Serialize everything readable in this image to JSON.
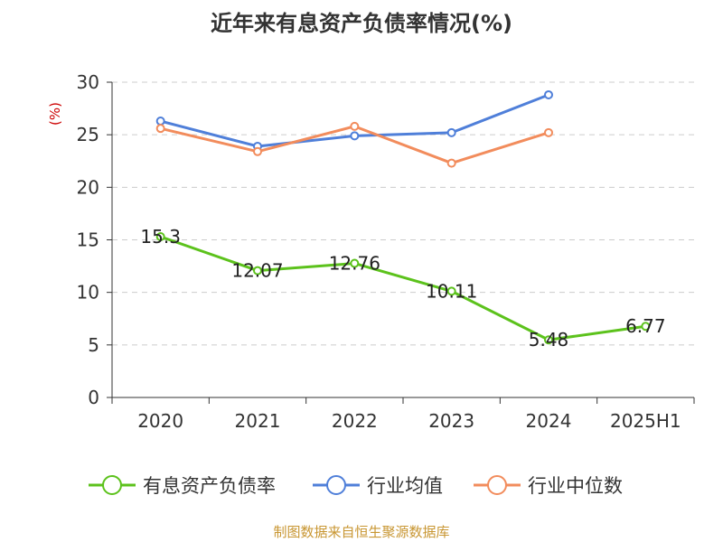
{
  "chart_data": {
    "type": "line",
    "title": "近年来有息资产负债率情况(%)",
    "ylabel": "(%)",
    "categories": [
      "2020",
      "2021",
      "2022",
      "2023",
      "2024",
      "2025H1"
    ],
    "ylim": [
      0,
      30
    ],
    "yticks": [
      0,
      5,
      10,
      15,
      20,
      25,
      30
    ],
    "grid": true,
    "legend_position": "bottom",
    "series": [
      {
        "name": "有息资产负债率",
        "color": "#5cc21c",
        "values": [
          15.3,
          12.07,
          12.76,
          10.11,
          5.48,
          6.77
        ],
        "labels": [
          "15.3",
          "12.07",
          "12.76",
          "10.11",
          "5.48",
          "6.77"
        ]
      },
      {
        "name": "行业均值",
        "color": "#4f7fd9",
        "values": [
          26.3,
          23.9,
          24.9,
          25.2,
          28.8,
          null
        ]
      },
      {
        "name": "行业中位数",
        "color": "#f28c5c",
        "values": [
          25.6,
          23.4,
          25.8,
          22.3,
          25.2,
          null
        ]
      }
    ]
  },
  "source": "制图数据来自恒生聚源数据库",
  "colors": {
    "axis": "#333333",
    "grid": "#cccccc",
    "ylabel": "#cc0000",
    "source": "#c89632"
  }
}
